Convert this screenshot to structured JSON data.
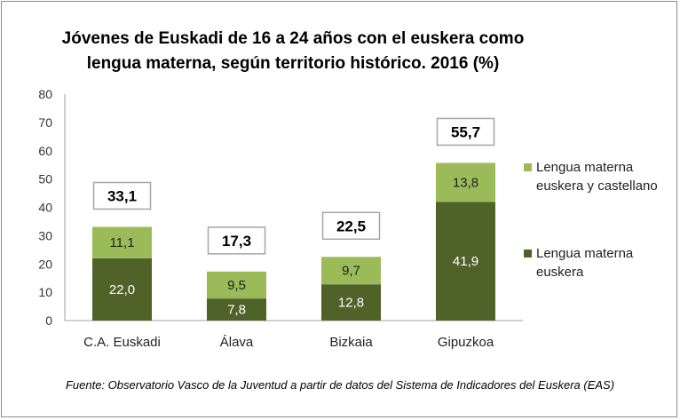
{
  "chart_data": {
    "type": "bar",
    "stacked": true,
    "title": "Jóvenes de Euskadi de 16 a 24 años con el euskera como lengua materna, según territorio histórico. 2016 (%)",
    "categories": [
      "C.A. Euskadi",
      "Álava",
      "Bizkaia",
      "Gipuzkoa"
    ],
    "series": [
      {
        "name": "Lengua materna euskera",
        "values": [
          22.0,
          7.8,
          12.8,
          41.9
        ],
        "labels": [
          "22,0",
          "7,8",
          "12,8",
          "41,9"
        ],
        "color": "#4f6228"
      },
      {
        "name": "Lengua materna euskera y castellano",
        "values": [
          11.1,
          9.5,
          9.7,
          13.8
        ],
        "labels": [
          "11,1",
          "9,5",
          "9,7",
          "13,8"
        ],
        "color": "#9bbb59"
      }
    ],
    "totals": [
      "33,1",
      "17,3",
      "22,5",
      "55,7"
    ],
    "ylim": [
      0,
      80
    ],
    "yticks": [
      "0",
      "10",
      "20",
      "30",
      "40",
      "50",
      "60",
      "70",
      "80"
    ],
    "grid": false,
    "legend": "right",
    "source": "Fuente: Observatorio Vasco de la Juventud a partir de datos del Sistema de Indicadores del Euskera (EAS)"
  }
}
